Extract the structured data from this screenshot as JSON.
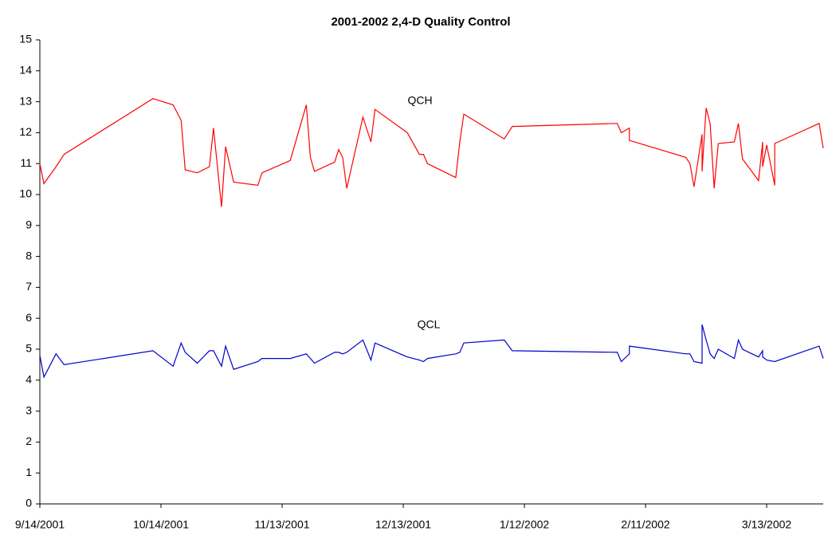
{
  "chart_data": {
    "type": "line",
    "title": "2001-2002 2,4-D Quality Control",
    "annotations": [
      "QCH",
      "QCL"
    ],
    "x": [
      "2001-09-14",
      "2001-09-15",
      "2001-09-18",
      "2001-09-20",
      "2001-10-12",
      "2001-10-17",
      "2001-10-19",
      "2001-10-20",
      "2001-10-23",
      "2001-10-26",
      "2001-10-27",
      "2001-10-29",
      "2001-10-30",
      "2001-11-01",
      "2001-11-07",
      "2001-11-08",
      "2001-11-15",
      "2001-11-19",
      "2001-11-20",
      "2001-11-21",
      "2001-11-26",
      "2001-11-27",
      "2001-11-28",
      "2001-11-29",
      "2001-12-03",
      "2001-12-05",
      "2001-12-06",
      "2001-12-14",
      "2001-12-17",
      "2001-12-18",
      "2001-12-19",
      "2001-12-26",
      "2001-12-27",
      "2001-12-28",
      "2002-01-07",
      "2002-01-09",
      "2002-02-04",
      "2002-02-05",
      "2002-02-07",
      "2002-02-07",
      "2002-02-21",
      "2002-02-22",
      "2002-02-23",
      "2002-02-25",
      "2002-02-25",
      "2002-02-26",
      "2002-02-27",
      "2002-02-28",
      "2002-03-01",
      "2002-03-05",
      "2002-03-06",
      "2002-03-07",
      "2002-03-11",
      "2002-03-12",
      "2002-03-12",
      "2002-03-13",
      "2002-03-15",
      "2002-03-15",
      "2002-03-26",
      "2002-03-27"
    ],
    "series": [
      {
        "name": "QCH",
        "color": "#ff0000",
        "values": [
          11.0,
          10.35,
          10.9,
          11.3,
          13.1,
          12.9,
          12.4,
          10.8,
          10.7,
          10.9,
          12.15,
          9.6,
          11.55,
          10.4,
          10.3,
          10.7,
          11.1,
          12.9,
          11.2,
          10.75,
          11.05,
          11.45,
          11.2,
          10.2,
          12.5,
          11.7,
          12.75,
          12.0,
          11.3,
          11.3,
          11.0,
          10.55,
          11.7,
          12.6,
          11.8,
          12.2,
          12.3,
          12.0,
          12.15,
          11.75,
          11.2,
          11.0,
          10.25,
          11.95,
          10.75,
          12.8,
          12.3,
          10.2,
          11.65,
          11.7,
          12.3,
          11.15,
          10.45,
          11.7,
          10.9,
          11.6,
          10.3,
          11.65,
          12.3,
          11.5
        ]
      },
      {
        "name": "QCL",
        "color": "#0000cc",
        "values": [
          4.8,
          4.1,
          4.85,
          4.5,
          4.95,
          4.45,
          5.2,
          4.9,
          4.55,
          4.95,
          4.95,
          4.45,
          5.1,
          4.35,
          4.6,
          4.7,
          4.7,
          4.85,
          4.7,
          4.55,
          4.9,
          4.9,
          4.85,
          4.9,
          5.3,
          4.65,
          5.2,
          4.75,
          4.65,
          4.6,
          4.7,
          4.85,
          4.9,
          5.2,
          5.3,
          4.95,
          4.9,
          4.6,
          4.85,
          5.1,
          4.85,
          4.85,
          4.6,
          4.55,
          5.8,
          5.3,
          4.85,
          4.7,
          5.0,
          4.7,
          5.3,
          5.0,
          4.75,
          4.95,
          4.75,
          4.65,
          4.6,
          4.6,
          5.1,
          4.7
        ]
      }
    ],
    "xlim": [
      "2001-09-14",
      "2002-03-27"
    ],
    "xticks": [
      {
        "value": "2001-09-14",
        "label": "9/14/2001"
      },
      {
        "value": "2001-10-14",
        "label": "10/14/2001"
      },
      {
        "value": "2001-11-13",
        "label": "11/13/2001"
      },
      {
        "value": "2001-12-13",
        "label": "12/13/2001"
      },
      {
        "value": "2002-01-12",
        "label": "1/12/2002"
      },
      {
        "value": "2002-02-11",
        "label": "2/11/2002"
      },
      {
        "value": "2002-03-13",
        "label": "3/13/2002"
      }
    ],
    "ylim": [
      0,
      15
    ],
    "yticks": [
      0,
      1,
      2,
      3,
      4,
      5,
      6,
      7,
      8,
      9,
      10,
      11,
      12,
      13,
      14,
      15
    ]
  }
}
